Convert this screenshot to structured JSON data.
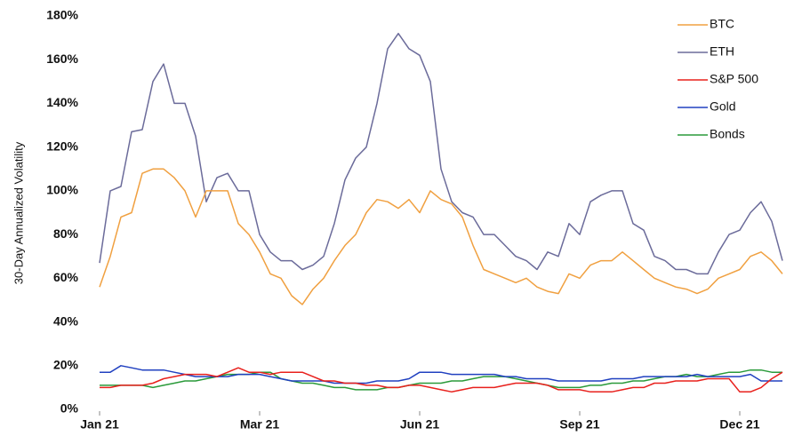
{
  "chart_data": {
    "type": "line",
    "ylabel": "30-Day Annualized Volatility",
    "x": [
      0,
      1,
      2,
      3,
      4,
      5,
      6,
      7,
      8,
      9,
      10,
      11,
      12,
      13,
      14,
      15,
      16,
      17,
      18,
      19,
      20,
      21,
      22,
      23,
      24,
      25,
      26,
      27,
      28,
      29,
      30,
      31,
      32,
      33,
      34,
      35,
      36,
      37,
      38,
      39,
      40,
      41,
      42,
      43,
      44,
      45,
      46,
      47,
      48,
      49,
      50,
      51,
      52,
      53,
      54,
      55,
      56,
      57,
      58,
      59,
      60,
      61,
      62,
      63,
      64
    ],
    "xlim": [
      0,
      64
    ],
    "xticks": [
      {
        "value": 0,
        "label": "Jan 21"
      },
      {
        "value": 15,
        "label": "Mar 21"
      },
      {
        "value": 30,
        "label": "Jun 21"
      },
      {
        "value": 45,
        "label": "Sep 21"
      },
      {
        "value": 60,
        "label": "Dec 21"
      }
    ],
    "ylim": [
      0,
      180
    ],
    "yticks": [
      {
        "value": 0,
        "label": "0%"
      },
      {
        "value": 20,
        "label": "20%"
      },
      {
        "value": 40,
        "label": "40%"
      },
      {
        "value": 60,
        "label": "60%"
      },
      {
        "value": 80,
        "label": "80%"
      },
      {
        "value": 100,
        "label": "100%"
      },
      {
        "value": 120,
        "label": "120%"
      },
      {
        "value": 140,
        "label": "140%"
      },
      {
        "value": 160,
        "label": "160%"
      },
      {
        "value": 180,
        "label": "180%"
      }
    ],
    "grid": false,
    "legend": "top-right",
    "series": [
      {
        "name": "BTC",
        "color": "#f0a040",
        "values": [
          56,
          70,
          88,
          90,
          108,
          110,
          110,
          106,
          100,
          88,
          100,
          100,
          100,
          85,
          80,
          72,
          62,
          60,
          52,
          48,
          55,
          60,
          68,
          75,
          80,
          90,
          96,
          95,
          92,
          96,
          90,
          100,
          96,
          94,
          88,
          75,
          64,
          62,
          60,
          58,
          60,
          56,
          54,
          53,
          62,
          60,
          66,
          68,
          68,
          72,
          68,
          64,
          60,
          58,
          56,
          55,
          53,
          55,
          60,
          62,
          64,
          70,
          72,
          68,
          62
        ]
      },
      {
        "name": "ETH",
        "color": "#6b6b9a",
        "values": [
          67,
          100,
          102,
          127,
          128,
          150,
          158,
          140,
          140,
          125,
          95,
          106,
          108,
          100,
          100,
          80,
          72,
          68,
          68,
          64,
          66,
          70,
          85,
          105,
          115,
          120,
          140,
          165,
          172,
          165,
          162,
          150,
          110,
          95,
          90,
          88,
          80,
          80,
          75,
          70,
          68,
          64,
          72,
          70,
          85,
          80,
          95,
          98,
          100,
          100,
          85,
          82,
          70,
          68,
          64,
          64,
          62,
          62,
          72,
          80,
          82,
          90,
          95,
          86,
          68
        ]
      },
      {
        "name": "S&P 500",
        "color": "#e8201c",
        "values": [
          10,
          10,
          11,
          11,
          11,
          12,
          14,
          15,
          16,
          16,
          16,
          15,
          17,
          19,
          17,
          17,
          16,
          17,
          17,
          17,
          15,
          13,
          13,
          12,
          12,
          11,
          11,
          10,
          10,
          11,
          11,
          10,
          9,
          8,
          9,
          10,
          10,
          10,
          11,
          12,
          12,
          12,
          11,
          9,
          9,
          9,
          8,
          8,
          8,
          9,
          10,
          10,
          12,
          12,
          13,
          13,
          13,
          14,
          14,
          14,
          8,
          8,
          10,
          14,
          17
        ]
      },
      {
        "name": "Gold",
        "color": "#2040c0",
        "values": [
          17,
          17,
          20,
          19,
          18,
          18,
          18,
          17,
          16,
          15,
          15,
          15,
          15,
          16,
          16,
          16,
          15,
          14,
          13,
          13,
          13,
          13,
          12,
          12,
          12,
          12,
          13,
          13,
          13,
          14,
          17,
          17,
          17,
          16,
          16,
          16,
          16,
          16,
          15,
          15,
          14,
          14,
          14,
          13,
          13,
          13,
          13,
          13,
          14,
          14,
          14,
          15,
          15,
          15,
          15,
          15,
          16,
          15,
          15,
          15,
          15,
          16,
          13,
          13,
          13
        ]
      },
      {
        "name": "Bonds",
        "color": "#2a9a3a",
        "values": [
          11,
          11,
          11,
          11,
          11,
          10,
          11,
          12,
          13,
          13,
          14,
          15,
          16,
          16,
          16,
          17,
          17,
          14,
          13,
          12,
          12,
          11,
          10,
          10,
          9,
          9,
          9,
          10,
          10,
          11,
          12,
          12,
          12,
          13,
          13,
          14,
          15,
          15,
          15,
          14,
          13,
          12,
          11,
          10,
          10,
          10,
          11,
          11,
          12,
          12,
          13,
          13,
          14,
          15,
          15,
          16,
          15,
          15,
          16,
          17,
          17,
          18,
          18,
          17,
          17
        ]
      }
    ]
  }
}
